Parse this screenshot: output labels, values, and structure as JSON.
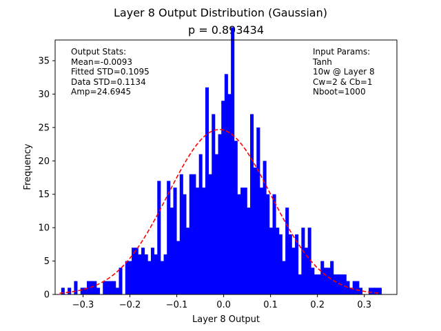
{
  "chart_data": {
    "type": "bar",
    "title": "Layer 8 Output Distribution (Gaussian)",
    "subtitle": "p = 0.893434",
    "xlabel": "Layer 8 Output",
    "ylabel": "Frequency",
    "xlim": [
      -0.3595,
      0.3695
    ],
    "ylim": [
      0,
      38.1
    ],
    "xticks": [
      -0.3,
      -0.2,
      -0.1,
      0.0,
      0.1,
      0.2,
      0.3
    ],
    "xtick_labels": [
      "−0.3",
      "−0.2",
      "−0.1",
      "0.0",
      "0.1",
      "0.2",
      "0.3"
    ],
    "yticks": [
      0,
      5,
      10,
      15,
      20,
      25,
      30,
      35
    ],
    "ytick_labels": [
      "0",
      "5",
      "10",
      "15",
      "20",
      "25",
      "30",
      "35"
    ],
    "grid": false,
    "bar_color": "#0000ff",
    "fit_color": "#ff0000",
    "bin_edges_range": [
      -0.3465,
      0.3365
    ],
    "frequencies": [
      1,
      0,
      1,
      0,
      2,
      0,
      1,
      1,
      2,
      2,
      2,
      1,
      0,
      2,
      2,
      2,
      2,
      1,
      4,
      0,
      5,
      5,
      7,
      7,
      6,
      7,
      6,
      5,
      7,
      6,
      17,
      5,
      6,
      17,
      13,
      16,
      8,
      18,
      15,
      10,
      18,
      18,
      16,
      21,
      16,
      31,
      18,
      27,
      21,
      24,
      29,
      33,
      30,
      40,
      23,
      15,
      16,
      16,
      13,
      27,
      19,
      25,
      16,
      20,
      15,
      10,
      15,
      10,
      9,
      5,
      13,
      9,
      7,
      9,
      3,
      10,
      7,
      10,
      4,
      3,
      3,
      5,
      4,
      4,
      5,
      3,
      3,
      3,
      3,
      2,
      1,
      2,
      2,
      1,
      0,
      0,
      1,
      1,
      1,
      1
    ],
    "fit": {
      "mean": -0.0093,
      "std": 0.1095,
      "amplitude": 24.6945,
      "x_range": [
        -0.35,
        0.33
      ],
      "style": "dashed"
    },
    "annotations": {
      "left": [
        "Output Stats:",
        "Mean=-0.0093",
        "Fitted STD=0.1095",
        "Data STD=0.1134",
        "Amp=24.6945"
      ],
      "right": [
        "Input Params:",
        "Tanh",
        "10w @ Layer 8",
        "Cw=2 & Cb=1",
        "Nboot=1000"
      ]
    }
  }
}
